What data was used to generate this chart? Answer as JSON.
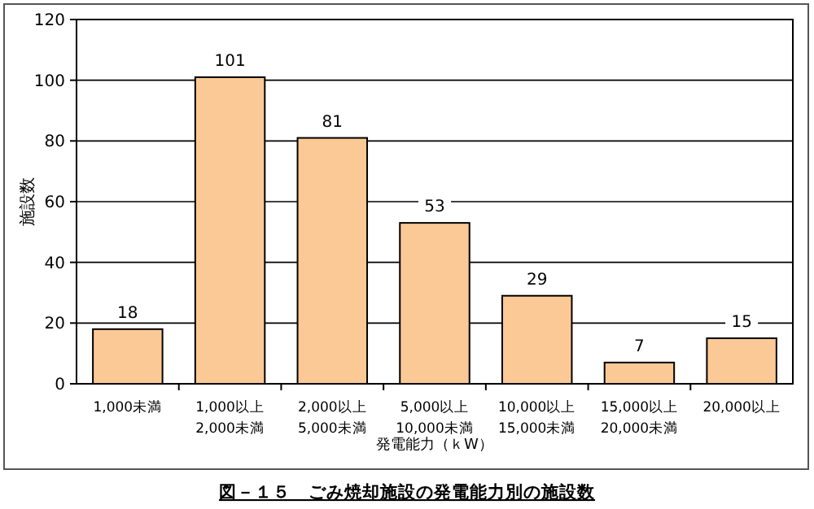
{
  "chart_data": {
    "type": "bar",
    "title": "図－１５　ごみ焼却施設の発電能力別の施設数",
    "xlabel": "発電能力（ｋW）",
    "ylabel": "施設数",
    "categories": [
      "1,000未満",
      "1,000以上\n2,000未満",
      "2,000以上\n5,000未満",
      "5,000以上\n10,000未満",
      "10,000以上\n15,000未満",
      "15,000以上\n20,000未満",
      "20,000以上"
    ],
    "values": [
      18,
      101,
      81,
      53,
      29,
      7,
      15
    ],
    "color": "#fbc995",
    "ylim": [
      0,
      120
    ],
    "yticks": [
      0,
      20,
      40,
      60,
      80,
      100,
      120
    ],
    "grid": "y",
    "data_labels": true
  }
}
